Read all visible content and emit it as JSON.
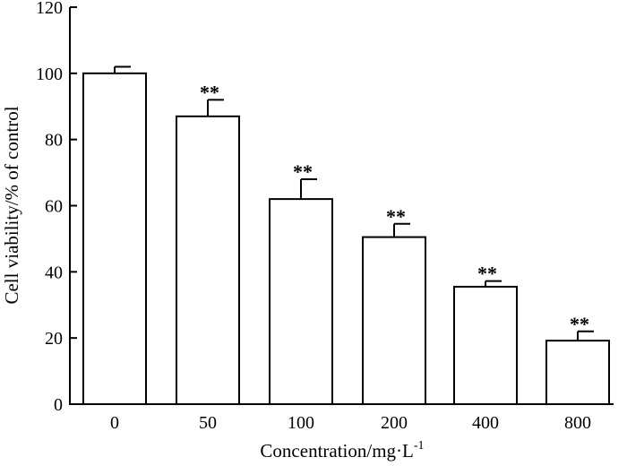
{
  "chart_data": {
    "type": "bar",
    "categories": [
      "0",
      "50",
      "100",
      "200",
      "400",
      "800"
    ],
    "values": [
      100,
      87,
      62,
      50.5,
      35.5,
      19.2
    ],
    "errors": [
      2,
      5,
      6,
      4,
      1.7,
      2.8
    ],
    "significance": [
      "",
      "**",
      "**",
      "**",
      "**",
      "**"
    ],
    "xlabel": "Concentration/mg·L",
    "xlabel_superscript": "-1",
    "ylabel": "Cell viability/% of control",
    "ylim": [
      0,
      120
    ],
    "yticks": [
      0,
      20,
      40,
      60,
      80,
      100,
      120
    ],
    "grid": false,
    "bar_fill": "#ffffff",
    "bar_stroke": "#000000"
  }
}
